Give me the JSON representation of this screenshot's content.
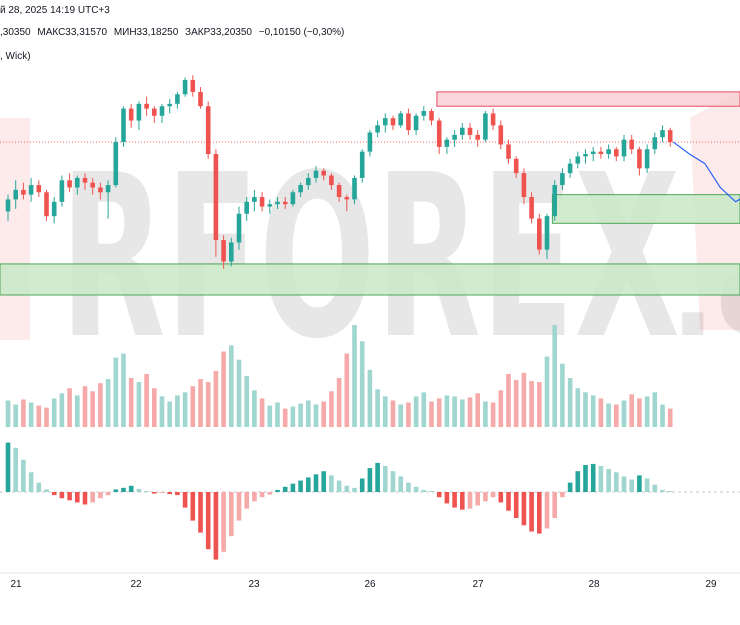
{
  "header": {
    "datetime": "й 28, 2025 14:19 UTC+3",
    "open": ",30350",
    "high": "МАКС33,31570",
    "low": "МИН33,18250",
    "close": "ЗАКР33,20350",
    "change": "−0,10150 (−0,30%)",
    "indicator": ", Wick)"
  },
  "watermark": {
    "text": "RFOREX",
    "suffix": ".c"
  },
  "colors": {
    "up": "#26a69a",
    "down": "#ef5350",
    "vol_up": "#9fd6cf",
    "vol_down": "#f5a9a8",
    "zone_red": "#f8d2d5",
    "zone_red_border": "#e53950",
    "zone_green": "#cbe9c9",
    "zone_green_border": "#3a9e4a",
    "projection": "#2962ff"
  },
  "chart_data": {
    "type": "candlestick",
    "x_ticks": [
      "21",
      "22",
      "23",
      "26",
      "27",
      "28",
      "29"
    ],
    "candles": [
      [
        32.9,
        32.97,
        32.86,
        32.95
      ],
      [
        32.95,
        33.03,
        32.91,
        32.99
      ],
      [
        32.99,
        33.02,
        32.95,
        32.97
      ],
      [
        32.97,
        33.04,
        32.94,
        33.01
      ],
      [
        33.01,
        33.03,
        32.96,
        32.98
      ],
      [
        32.98,
        32.99,
        32.86,
        32.88
      ],
      [
        32.88,
        32.96,
        32.85,
        32.94
      ],
      [
        32.94,
        33.05,
        32.92,
        33.03
      ],
      [
        33.03,
        33.06,
        32.98,
        33.0
      ],
      [
        33.0,
        33.05,
        32.97,
        33.04
      ],
      [
        33.04,
        33.06,
        32.99,
        33.02
      ],
      [
        33.02,
        33.04,
        32.97,
        33.0
      ],
      [
        33.0,
        33.02,
        32.95,
        32.98
      ],
      [
        32.98,
        33.03,
        32.87,
        33.01
      ],
      [
        33.01,
        33.21,
        33.0,
        33.19
      ],
      [
        33.19,
        33.34,
        33.17,
        33.33
      ],
      [
        33.33,
        33.35,
        33.25,
        33.28
      ],
      [
        33.28,
        33.36,
        33.24,
        33.35
      ],
      [
        33.35,
        33.38,
        33.3,
        33.33
      ],
      [
        33.33,
        33.34,
        33.27,
        33.3
      ],
      [
        33.3,
        33.35,
        33.27,
        33.34
      ],
      [
        33.34,
        33.37,
        33.31,
        33.35
      ],
      [
        33.35,
        33.4,
        33.33,
        33.39
      ],
      [
        33.39,
        33.46,
        33.38,
        33.45
      ],
      [
        33.45,
        33.47,
        33.38,
        33.4
      ],
      [
        33.4,
        33.42,
        33.33,
        33.34
      ],
      [
        33.34,
        33.36,
        33.12,
        33.14
      ],
      [
        33.14,
        33.16,
        32.71,
        32.78
      ],
      [
        32.78,
        32.8,
        32.66,
        32.69
      ],
      [
        32.69,
        32.79,
        32.67,
        32.77
      ],
      [
        32.77,
        32.92,
        32.74,
        32.89
      ],
      [
        32.89,
        32.96,
        32.86,
        32.94
      ],
      [
        32.94,
        32.99,
        32.9,
        32.96
      ],
      [
        32.96,
        32.98,
        32.9,
        32.92
      ],
      [
        32.92,
        32.95,
        32.89,
        32.93
      ],
      [
        32.93,
        32.96,
        32.91,
        32.94
      ],
      [
        32.94,
        32.96,
        32.91,
        32.93
      ],
      [
        32.93,
        32.99,
        32.92,
        32.98
      ],
      [
        32.98,
        33.02,
        32.96,
        33.01
      ],
      [
        33.01,
        33.06,
        32.99,
        33.04
      ],
      [
        33.04,
        33.09,
        33.02,
        33.07
      ],
      [
        33.07,
        33.08,
        33.03,
        33.05
      ],
      [
        33.05,
        33.06,
        32.99,
        33.01
      ],
      [
        33.01,
        33.02,
        32.94,
        32.96
      ],
      [
        32.96,
        32.97,
        32.9,
        32.95
      ],
      [
        32.95,
        33.05,
        32.93,
        33.04
      ],
      [
        33.04,
        33.16,
        33.02,
        33.15
      ],
      [
        33.15,
        33.24,
        33.13,
        33.23
      ],
      [
        33.23,
        33.28,
        33.21,
        33.26
      ],
      [
        33.26,
        33.31,
        33.23,
        33.29
      ],
      [
        33.29,
        33.3,
        33.24,
        33.26
      ],
      [
        33.26,
        33.32,
        33.25,
        33.31
      ],
      [
        33.31,
        33.33,
        33.22,
        33.24
      ],
      [
        33.24,
        33.31,
        33.22,
        33.3
      ],
      [
        33.3,
        33.34,
        33.28,
        33.32
      ],
      [
        33.32,
        33.33,
        33.26,
        33.28
      ],
      [
        33.28,
        33.29,
        33.14,
        33.17
      ],
      [
        33.17,
        33.21,
        33.14,
        33.2
      ],
      [
        33.2,
        33.24,
        33.17,
        33.22
      ],
      [
        33.22,
        33.27,
        33.2,
        33.25
      ],
      [
        33.25,
        33.27,
        33.2,
        33.22
      ],
      [
        33.22,
        33.24,
        33.17,
        33.2
      ],
      [
        33.2,
        33.32,
        33.19,
        33.31
      ],
      [
        33.31,
        33.33,
        33.24,
        33.26
      ],
      [
        33.26,
        33.28,
        33.16,
        33.18
      ],
      [
        33.18,
        33.2,
        33.1,
        33.12
      ],
      [
        33.12,
        33.13,
        33.04,
        33.06
      ],
      [
        33.06,
        33.08,
        32.93,
        32.96
      ],
      [
        32.96,
        32.98,
        32.85,
        32.87
      ],
      [
        32.87,
        32.89,
        32.72,
        32.74
      ],
      [
        32.74,
        32.89,
        32.7,
        32.88
      ],
      [
        32.88,
        33.03,
        32.86,
        33.01
      ],
      [
        33.01,
        33.08,
        32.99,
        33.06
      ],
      [
        33.06,
        33.12,
        33.04,
        33.1
      ],
      [
        33.1,
        33.15,
        33.08,
        33.13
      ],
      [
        33.13,
        33.16,
        33.1,
        33.14
      ],
      [
        33.14,
        33.17,
        33.11,
        33.15
      ],
      [
        33.15,
        33.17,
        33.12,
        33.14
      ],
      [
        33.14,
        33.18,
        33.12,
        33.16
      ],
      [
        33.16,
        33.17,
        33.11,
        33.13
      ],
      [
        33.13,
        33.22,
        33.11,
        33.2
      ],
      [
        33.2,
        33.22,
        33.14,
        33.16
      ],
      [
        33.16,
        33.17,
        33.05,
        33.08
      ],
      [
        33.08,
        33.18,
        33.06,
        33.16
      ],
      [
        33.16,
        33.23,
        33.14,
        33.21
      ],
      [
        33.21,
        33.26,
        33.19,
        33.24
      ],
      [
        33.24,
        33.25,
        33.17,
        33.19
      ]
    ],
    "volume": [
      0.26,
      0.22,
      0.27,
      0.24,
      0.21,
      0.19,
      0.28,
      0.33,
      0.38,
      0.31,
      0.4,
      0.35,
      0.43,
      0.47,
      0.68,
      0.72,
      0.48,
      0.44,
      0.52,
      0.38,
      0.3,
      0.25,
      0.31,
      0.34,
      0.4,
      0.47,
      0.44,
      0.55,
      0.74,
      0.8,
      0.66,
      0.5,
      0.36,
      0.28,
      0.21,
      0.24,
      0.18,
      0.2,
      0.23,
      0.26,
      0.22,
      0.25,
      0.35,
      0.48,
      0.72,
      1.0,
      0.84,
      0.56,
      0.37,
      0.3,
      0.26,
      0.22,
      0.24,
      0.3,
      0.34,
      0.25,
      0.28,
      0.31,
      0.3,
      0.27,
      0.29,
      0.33,
      0.25,
      0.24,
      0.36,
      0.52,
      0.46,
      0.53,
      0.45,
      0.44,
      0.69,
      1.0,
      0.62,
      0.48,
      0.38,
      0.34,
      0.31,
      0.28,
      0.23,
      0.22,
      0.26,
      0.32,
      0.28,
      0.3,
      0.34,
      0.22,
      0.18
    ],
    "oscillator": [
      0.95,
      0.85,
      0.62,
      0.38,
      0.18,
      0.05,
      -0.06,
      -0.12,
      -0.16,
      -0.2,
      -0.24,
      -0.2,
      -0.12,
      -0.06,
      0.05,
      0.08,
      0.12,
      0.06,
      0.02,
      -0.03,
      -0.02,
      -0.04,
      -0.06,
      -0.3,
      -0.55,
      -0.78,
      -1.1,
      -1.3,
      -1.15,
      -0.85,
      -0.55,
      -0.32,
      -0.18,
      -0.1,
      -0.05,
      0.04,
      0.1,
      0.16,
      0.22,
      0.28,
      0.34,
      0.4,
      0.32,
      0.22,
      0.12,
      0.08,
      0.26,
      0.46,
      0.56,
      0.5,
      0.4,
      0.3,
      0.18,
      0.1,
      0.04,
      0.02,
      -0.1,
      -0.22,
      -0.3,
      -0.34,
      -0.32,
      -0.26,
      -0.18,
      -0.1,
      -0.2,
      -0.36,
      -0.5,
      -0.64,
      -0.76,
      -0.8,
      -0.7,
      -0.5,
      -0.1,
      0.18,
      0.4,
      0.52,
      0.54,
      0.5,
      0.44,
      0.38,
      0.3,
      0.24,
      0.32,
      0.26,
      0.14,
      0.04,
      0.02
    ],
    "zones": [
      {
        "kind": "resistance",
        "from_candle": 56,
        "to_candle": 200,
        "low": 33.34,
        "high": 33.4
      },
      {
        "kind": "support",
        "from_candle": 71,
        "to_candle": 200,
        "low": 32.85,
        "high": 32.97
      },
      {
        "kind": "support",
        "from_candle": -5,
        "to_candle": 200,
        "low": 32.55,
        "high": 32.68
      }
    ],
    "price_line": 33.19,
    "projection": [
      [
        86.4,
        33.19
      ],
      [
        88.5,
        33.14
      ],
      [
        90.5,
        33.1
      ],
      [
        92.5,
        33.0
      ],
      [
        94.5,
        32.94
      ],
      [
        96.5,
        32.98
      ]
    ]
  }
}
